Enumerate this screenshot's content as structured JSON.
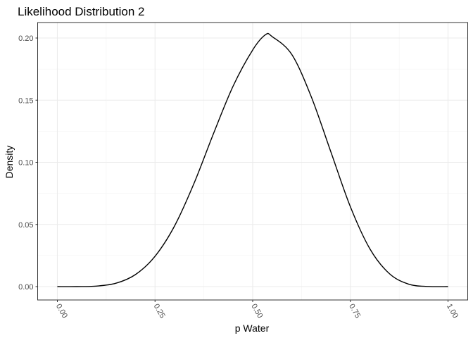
{
  "chart_data": {
    "type": "line",
    "title": "Likelihood Distribution 2",
    "xlabel": "p Water",
    "ylabel": "Density",
    "xlim": [
      0,
      1
    ],
    "ylim": [
      0,
      0.2
    ],
    "x_ticks": [
      "0.00",
      "0.25",
      "0.50",
      "0.75",
      "1.00"
    ],
    "y_ticks": [
      "0.00",
      "0.05",
      "0.10",
      "0.15",
      "0.20"
    ],
    "x_tick_values": [
      0,
      0.25,
      0.5,
      0.75,
      1
    ],
    "y_tick_values": [
      0,
      0.05,
      0.1,
      0.15,
      0.2
    ],
    "grid": true,
    "line_color": "#000000",
    "series": [
      {
        "x": [
          0.0,
          0.05,
          0.1,
          0.15,
          0.2,
          0.25,
          0.3,
          0.35,
          0.4,
          0.45,
          0.5,
          0.533,
          0.55,
          0.6,
          0.65,
          0.7,
          0.75,
          0.8,
          0.85,
          0.9,
          0.95,
          1.0
        ],
        "values": [
          0.0,
          0.0,
          0.0004,
          0.0027,
          0.0097,
          0.0244,
          0.0488,
          0.0832,
          0.1234,
          0.1614,
          0.1904,
          0.2027,
          0.2011,
          0.1868,
          0.1527,
          0.1085,
          0.0643,
          0.0304,
          0.0104,
          0.0019,
          0.0001,
          0.0
        ]
      }
    ]
  }
}
